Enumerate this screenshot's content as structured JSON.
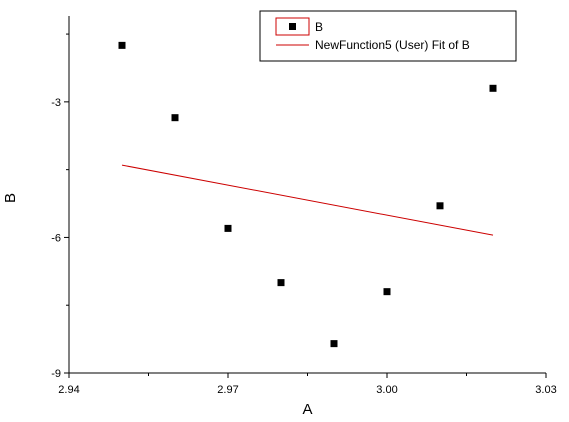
{
  "chart_data": {
    "type": "scatter",
    "xlabel": "A",
    "ylabel": "B",
    "xlim": [
      2.94,
      3.03
    ],
    "ylim": [
      -9,
      -1.1
    ],
    "x_ticks": [
      2.94,
      2.97,
      3.0,
      3.03
    ],
    "x_tick_labels": [
      "2.94",
      "2.97",
      "3.00",
      "3.03"
    ],
    "y_ticks": [
      -3,
      -6,
      -9
    ],
    "y_tick_labels": [
      "-3",
      "-6",
      "-9"
    ],
    "grid": false,
    "legend_position": "top-right",
    "series": [
      {
        "name": "B",
        "kind": "scatter",
        "marker": "square",
        "color": "#000000",
        "x": [
          2.95,
          2.96,
          2.97,
          2.98,
          2.99,
          3.0,
          3.01,
          3.02
        ],
        "y": [
          -1.75,
          -3.35,
          -5.8,
          -7.0,
          -8.35,
          -7.2,
          -5.3,
          -2.7
        ]
      },
      {
        "name": "NewFunction5 (User) Fit of B",
        "kind": "line",
        "color": "#cc0000",
        "x": [
          2.95,
          3.02
        ],
        "y": [
          -4.4,
          -5.95
        ]
      }
    ]
  }
}
